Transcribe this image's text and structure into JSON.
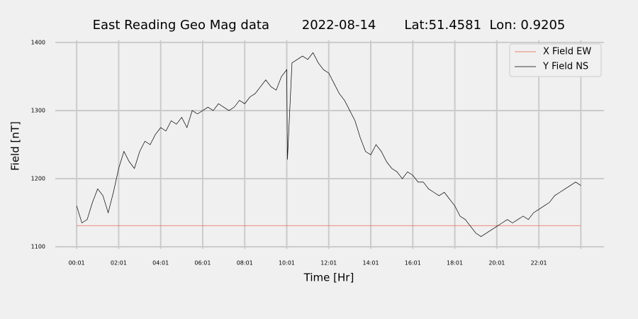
{
  "chart_data": {
    "type": "line",
    "title": "East Reading Geo Mag data        2022-08-14       Lat:51.4581  Lon: 0.9205",
    "xlabel": "Time  [Hr]",
    "ylabel": "Field  [nT]",
    "xlim": [
      -60,
      1507
    ],
    "ylim": [
      1097,
      1403
    ],
    "xticks": [
      {
        "value": 1,
        "label": "00:01"
      },
      {
        "value": 121,
        "label": "02:01"
      },
      {
        "value": 241,
        "label": "04:01"
      },
      {
        "value": 361,
        "label": "06:01"
      },
      {
        "value": 481,
        "label": "08:01"
      },
      {
        "value": 601,
        "label": "10:01"
      },
      {
        "value": 721,
        "label": "12:01"
      },
      {
        "value": 841,
        "label": "14:01"
      },
      {
        "value": 961,
        "label": "16:01"
      },
      {
        "value": 1081,
        "label": "18:01"
      },
      {
        "value": 1201,
        "label": "20:01"
      },
      {
        "value": 1321,
        "label": "22:01"
      },
      {
        "value": 1441,
        "label": null
      }
    ],
    "yticks": [
      1100,
      1200,
      1300,
      1400
    ],
    "grid": true,
    "legend": "upper right",
    "series": [
      {
        "name": "X Field EW",
        "color": "#e8604c",
        "x": [
          1,
          1441
        ],
        "values": [
          1131,
          1131
        ]
      },
      {
        "name": "Y Field NS",
        "color": "#000000",
        "x": [
          1,
          16,
          31,
          46,
          61,
          76,
          91,
          106,
          121,
          136,
          151,
          166,
          181,
          196,
          211,
          226,
          241,
          256,
          271,
          286,
          301,
          316,
          331,
          346,
          361,
          376,
          391,
          406,
          421,
          436,
          451,
          466,
          481,
          496,
          511,
          526,
          541,
          556,
          571,
          586,
          601,
          603,
          616,
          631,
          646,
          661,
          676,
          691,
          706,
          721,
          736,
          751,
          766,
          781,
          796,
          811,
          826,
          841,
          856,
          871,
          886,
          901,
          916,
          931,
          946,
          961,
          976,
          991,
          1006,
          1021,
          1036,
          1051,
          1066,
          1081,
          1096,
          1111,
          1126,
          1141,
          1156,
          1171,
          1186,
          1201,
          1216,
          1231,
          1246,
          1261,
          1276,
          1291,
          1306,
          1321,
          1336,
          1351,
          1366,
          1381,
          1396,
          1411,
          1426,
          1441
        ],
        "values": [
          1160,
          1135,
          1140,
          1165,
          1185,
          1175,
          1150,
          1180,
          1215,
          1240,
          1225,
          1215,
          1240,
          1255,
          1250,
          1265,
          1275,
          1270,
          1285,
          1280,
          1290,
          1275,
          1300,
          1295,
          1300,
          1305,
          1300,
          1310,
          1305,
          1300,
          1305,
          1315,
          1310,
          1320,
          1325,
          1335,
          1345,
          1335,
          1330,
          1350,
          1360,
          1228,
          1370,
          1375,
          1380,
          1375,
          1385,
          1370,
          1360,
          1355,
          1340,
          1325,
          1315,
          1300,
          1285,
          1260,
          1240,
          1235,
          1250,
          1240,
          1225,
          1215,
          1210,
          1200,
          1210,
          1205,
          1195,
          1195,
          1185,
          1180,
          1175,
          1180,
          1170,
          1160,
          1145,
          1140,
          1130,
          1120,
          1115,
          1120,
          1125,
          1130,
          1135,
          1140,
          1135,
          1140,
          1145,
          1140,
          1150,
          1155,
          1160,
          1165,
          1175,
          1180,
          1185,
          1190,
          1195,
          1190
        ]
      }
    ]
  }
}
